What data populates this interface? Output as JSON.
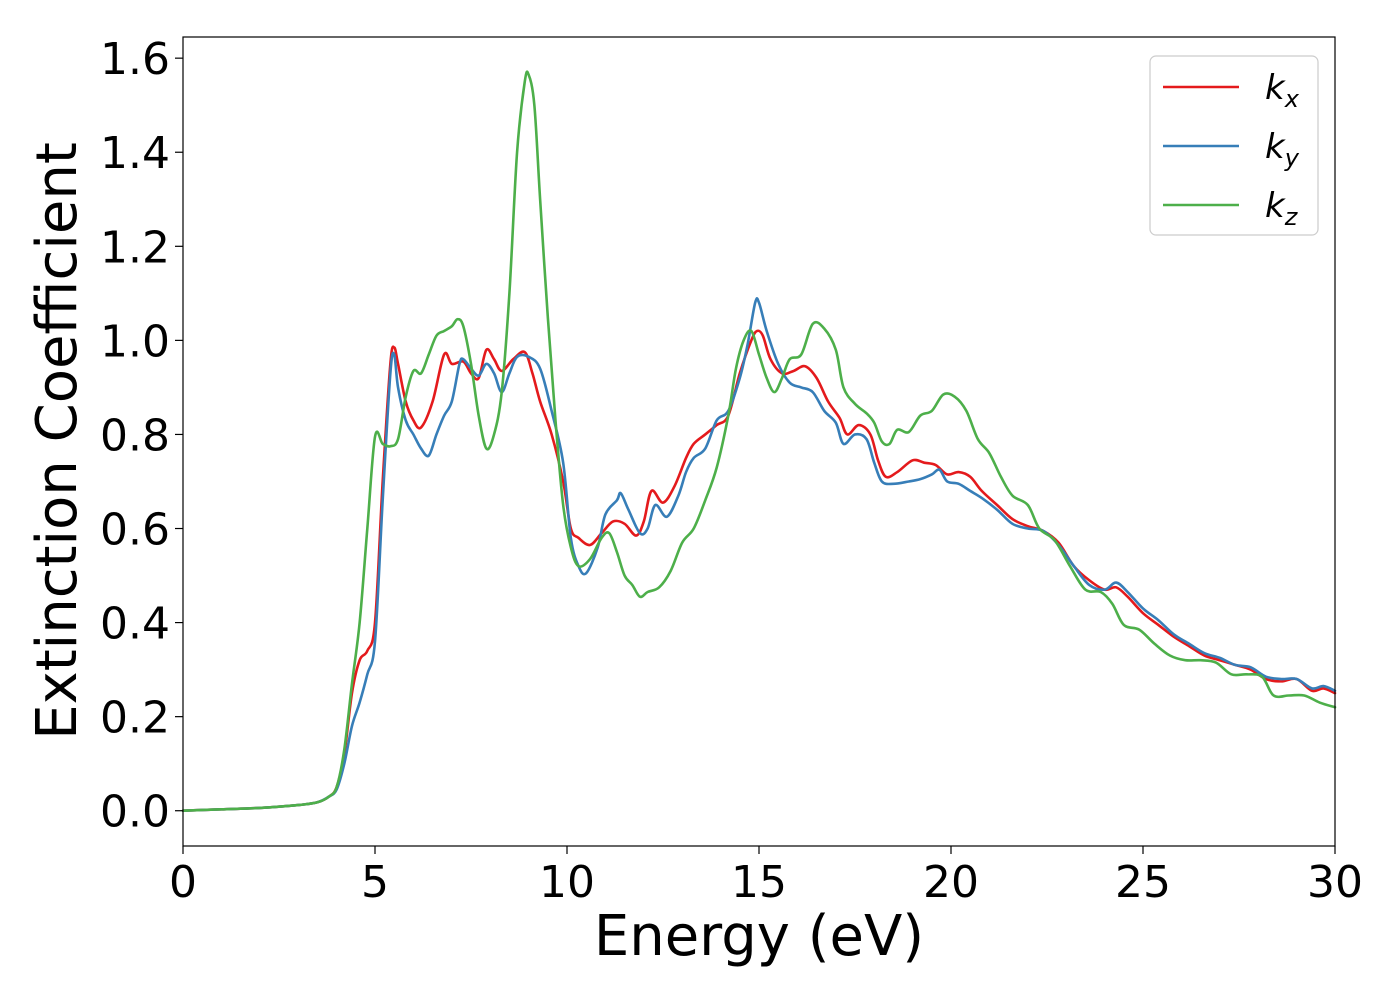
{
  "chart_data": {
    "type": "line",
    "title": "",
    "xlabel": "Energy (eV)",
    "ylabel": "Extinction Coefficient",
    "xlim": [
      0,
      30
    ],
    "ylim": [
      -0.075,
      1.645
    ],
    "xticks": [
      0,
      5,
      10,
      15,
      20,
      25,
      30
    ],
    "yticks": [
      0.0,
      0.2,
      0.4,
      0.6,
      0.8,
      1.0,
      1.2,
      1.4,
      1.6
    ],
    "xtick_labels": [
      "0",
      "5",
      "10",
      "15",
      "20",
      "25",
      "30"
    ],
    "ytick_labels": [
      "0.0",
      "0.2",
      "0.4",
      "0.6",
      "0.8",
      "1.0",
      "1.2",
      "1.4",
      "1.6"
    ],
    "grid": false,
    "legend": "top-right",
    "series": [
      {
        "name": "k_x",
        "label_base": "k",
        "label_sub": "x",
        "color": "#e41a1c",
        "points": [
          [
            0,
            0
          ],
          [
            1,
            0.003
          ],
          [
            2,
            0.006
          ],
          [
            3,
            0.012
          ],
          [
            3.5,
            0.018
          ],
          [
            3.8,
            0.03
          ],
          [
            4.0,
            0.05
          ],
          [
            4.2,
            0.12
          ],
          [
            4.4,
            0.25
          ],
          [
            4.6,
            0.32
          ],
          [
            4.8,
            0.34
          ],
          [
            5.0,
            0.4
          ],
          [
            5.2,
            0.7
          ],
          [
            5.4,
            0.95
          ],
          [
            5.5,
            0.985
          ],
          [
            5.6,
            0.95
          ],
          [
            5.8,
            0.87
          ],
          [
            6.0,
            0.83
          ],
          [
            6.2,
            0.815
          ],
          [
            6.5,
            0.87
          ],
          [
            6.8,
            0.97
          ],
          [
            7.0,
            0.95
          ],
          [
            7.3,
            0.955
          ],
          [
            7.5,
            0.93
          ],
          [
            7.7,
            0.92
          ],
          [
            7.9,
            0.98
          ],
          [
            8.1,
            0.96
          ],
          [
            8.3,
            0.935
          ],
          [
            8.6,
            0.96
          ],
          [
            8.9,
            0.975
          ],
          [
            9.1,
            0.93
          ],
          [
            9.3,
            0.87
          ],
          [
            9.6,
            0.8
          ],
          [
            9.9,
            0.7
          ],
          [
            10.1,
            0.6
          ],
          [
            10.3,
            0.58
          ],
          [
            10.6,
            0.565
          ],
          [
            10.9,
            0.59
          ],
          [
            11.2,
            0.615
          ],
          [
            11.5,
            0.61
          ],
          [
            11.8,
            0.585
          ],
          [
            12.0,
            0.615
          ],
          [
            12.2,
            0.68
          ],
          [
            12.5,
            0.655
          ],
          [
            12.8,
            0.69
          ],
          [
            13.1,
            0.75
          ],
          [
            13.3,
            0.78
          ],
          [
            13.6,
            0.8
          ],
          [
            13.9,
            0.82
          ],
          [
            14.2,
            0.84
          ],
          [
            14.5,
            0.93
          ],
          [
            14.8,
            1.0
          ],
          [
            14.95,
            1.02
          ],
          [
            15.1,
            1.01
          ],
          [
            15.3,
            0.96
          ],
          [
            15.6,
            0.93
          ],
          [
            15.9,
            0.935
          ],
          [
            16.2,
            0.945
          ],
          [
            16.5,
            0.92
          ],
          [
            16.8,
            0.87
          ],
          [
            17.1,
            0.835
          ],
          [
            17.3,
            0.8
          ],
          [
            17.6,
            0.82
          ],
          [
            17.9,
            0.8
          ],
          [
            18.1,
            0.745
          ],
          [
            18.3,
            0.71
          ],
          [
            18.6,
            0.72
          ],
          [
            19.0,
            0.745
          ],
          [
            19.3,
            0.74
          ],
          [
            19.6,
            0.735
          ],
          [
            19.9,
            0.715
          ],
          [
            20.2,
            0.72
          ],
          [
            20.5,
            0.71
          ],
          [
            20.8,
            0.68
          ],
          [
            21.2,
            0.65
          ],
          [
            21.6,
            0.62
          ],
          [
            22.0,
            0.605
          ],
          [
            22.4,
            0.595
          ],
          [
            22.8,
            0.57
          ],
          [
            23.2,
            0.52
          ],
          [
            23.6,
            0.49
          ],
          [
            24.0,
            0.47
          ],
          [
            24.3,
            0.475
          ],
          [
            24.6,
            0.455
          ],
          [
            25.0,
            0.42
          ],
          [
            25.4,
            0.395
          ],
          [
            25.8,
            0.37
          ],
          [
            26.2,
            0.35
          ],
          [
            26.6,
            0.33
          ],
          [
            27.0,
            0.32
          ],
          [
            27.4,
            0.31
          ],
          [
            27.8,
            0.3
          ],
          [
            28.2,
            0.28
          ],
          [
            28.6,
            0.275
          ],
          [
            29.0,
            0.28
          ],
          [
            29.4,
            0.255
          ],
          [
            29.7,
            0.26
          ],
          [
            30,
            0.25
          ]
        ]
      },
      {
        "name": "k_y",
        "label_base": "k",
        "label_sub": "y",
        "color": "#377eb8",
        "points": [
          [
            0,
            0
          ],
          [
            1,
            0.003
          ],
          [
            2,
            0.006
          ],
          [
            3,
            0.012
          ],
          [
            3.5,
            0.018
          ],
          [
            3.8,
            0.03
          ],
          [
            4.0,
            0.045
          ],
          [
            4.2,
            0.1
          ],
          [
            4.4,
            0.18
          ],
          [
            4.6,
            0.23
          ],
          [
            4.8,
            0.29
          ],
          [
            5.0,
            0.36
          ],
          [
            5.2,
            0.66
          ],
          [
            5.4,
            0.93
          ],
          [
            5.5,
            0.97
          ],
          [
            5.6,
            0.9
          ],
          [
            5.8,
            0.83
          ],
          [
            6.0,
            0.8
          ],
          [
            6.2,
            0.77
          ],
          [
            6.4,
            0.755
          ],
          [
            6.6,
            0.8
          ],
          [
            6.8,
            0.84
          ],
          [
            7.0,
            0.87
          ],
          [
            7.2,
            0.95
          ],
          [
            7.3,
            0.96
          ],
          [
            7.5,
            0.94
          ],
          [
            7.7,
            0.925
          ],
          [
            7.9,
            0.95
          ],
          [
            8.1,
            0.93
          ],
          [
            8.3,
            0.89
          ],
          [
            8.5,
            0.93
          ],
          [
            8.7,
            0.965
          ],
          [
            9.0,
            0.965
          ],
          [
            9.3,
            0.94
          ],
          [
            9.6,
            0.85
          ],
          [
            9.9,
            0.74
          ],
          [
            10.1,
            0.58
          ],
          [
            10.3,
            0.52
          ],
          [
            10.5,
            0.505
          ],
          [
            10.8,
            0.56
          ],
          [
            11.0,
            0.63
          ],
          [
            11.3,
            0.66
          ],
          [
            11.4,
            0.675
          ],
          [
            11.6,
            0.64
          ],
          [
            11.9,
            0.59
          ],
          [
            12.1,
            0.6
          ],
          [
            12.3,
            0.65
          ],
          [
            12.6,
            0.625
          ],
          [
            12.9,
            0.67
          ],
          [
            13.1,
            0.72
          ],
          [
            13.3,
            0.75
          ],
          [
            13.6,
            0.77
          ],
          [
            13.9,
            0.83
          ],
          [
            14.2,
            0.85
          ],
          [
            14.5,
            0.92
          ],
          [
            14.7,
            0.99
          ],
          [
            14.9,
            1.08
          ],
          [
            15.0,
            1.08
          ],
          [
            15.2,
            1.02
          ],
          [
            15.5,
            0.95
          ],
          [
            15.8,
            0.91
          ],
          [
            16.1,
            0.9
          ],
          [
            16.4,
            0.89
          ],
          [
            16.7,
            0.85
          ],
          [
            17.0,
            0.825
          ],
          [
            17.2,
            0.78
          ],
          [
            17.5,
            0.8
          ],
          [
            17.8,
            0.79
          ],
          [
            18.0,
            0.74
          ],
          [
            18.2,
            0.7
          ],
          [
            18.5,
            0.695
          ],
          [
            18.9,
            0.7
          ],
          [
            19.2,
            0.705
          ],
          [
            19.5,
            0.715
          ],
          [
            19.7,
            0.725
          ],
          [
            19.9,
            0.7
          ],
          [
            20.2,
            0.695
          ],
          [
            20.5,
            0.68
          ],
          [
            20.8,
            0.665
          ],
          [
            21.2,
            0.64
          ],
          [
            21.6,
            0.61
          ],
          [
            22.0,
            0.6
          ],
          [
            22.4,
            0.595
          ],
          [
            22.8,
            0.565
          ],
          [
            23.2,
            0.52
          ],
          [
            23.6,
            0.48
          ],
          [
            24.0,
            0.47
          ],
          [
            24.3,
            0.485
          ],
          [
            24.6,
            0.465
          ],
          [
            25.0,
            0.43
          ],
          [
            25.4,
            0.405
          ],
          [
            25.8,
            0.375
          ],
          [
            26.2,
            0.355
          ],
          [
            26.6,
            0.335
          ],
          [
            27.0,
            0.325
          ],
          [
            27.4,
            0.31
          ],
          [
            27.8,
            0.305
          ],
          [
            28.2,
            0.285
          ],
          [
            28.6,
            0.28
          ],
          [
            29.0,
            0.28
          ],
          [
            29.4,
            0.26
          ],
          [
            29.7,
            0.265
          ],
          [
            30,
            0.255
          ]
        ]
      },
      {
        "name": "k_z",
        "label_base": "k",
        "label_sub": "z",
        "color": "#4daf4a",
        "points": [
          [
            0,
            0
          ],
          [
            1,
            0.003
          ],
          [
            2,
            0.006
          ],
          [
            3,
            0.012
          ],
          [
            3.5,
            0.018
          ],
          [
            3.8,
            0.03
          ],
          [
            4.0,
            0.05
          ],
          [
            4.2,
            0.13
          ],
          [
            4.4,
            0.27
          ],
          [
            4.6,
            0.4
          ],
          [
            4.8,
            0.6
          ],
          [
            5.0,
            0.795
          ],
          [
            5.2,
            0.78
          ],
          [
            5.4,
            0.775
          ],
          [
            5.6,
            0.79
          ],
          [
            5.8,
            0.88
          ],
          [
            6.0,
            0.935
          ],
          [
            6.2,
            0.93
          ],
          [
            6.4,
            0.97
          ],
          [
            6.6,
            1.01
          ],
          [
            6.8,
            1.02
          ],
          [
            7.0,
            1.03
          ],
          [
            7.15,
            1.045
          ],
          [
            7.3,
            1.03
          ],
          [
            7.5,
            0.95
          ],
          [
            7.7,
            0.84
          ],
          [
            7.9,
            0.77
          ],
          [
            8.1,
            0.8
          ],
          [
            8.3,
            0.89
          ],
          [
            8.5,
            1.1
          ],
          [
            8.7,
            1.4
          ],
          [
            8.9,
            1.55
          ],
          [
            9.0,
            1.565
          ],
          [
            9.15,
            1.5
          ],
          [
            9.3,
            1.3
          ],
          [
            9.5,
            1.05
          ],
          [
            9.7,
            0.83
          ],
          [
            9.9,
            0.65
          ],
          [
            10.1,
            0.56
          ],
          [
            10.3,
            0.52
          ],
          [
            10.6,
            0.535
          ],
          [
            10.9,
            0.58
          ],
          [
            11.1,
            0.59
          ],
          [
            11.3,
            0.55
          ],
          [
            11.5,
            0.5
          ],
          [
            11.7,
            0.48
          ],
          [
            11.9,
            0.455
          ],
          [
            12.1,
            0.465
          ],
          [
            12.4,
            0.475
          ],
          [
            12.7,
            0.51
          ],
          [
            13.0,
            0.57
          ],
          [
            13.3,
            0.6
          ],
          [
            13.6,
            0.66
          ],
          [
            13.9,
            0.73
          ],
          [
            14.2,
            0.84
          ],
          [
            14.4,
            0.94
          ],
          [
            14.6,
            1.0
          ],
          [
            14.8,
            1.02
          ],
          [
            15.0,
            0.97
          ],
          [
            15.2,
            0.92
          ],
          [
            15.4,
            0.89
          ],
          [
            15.6,
            0.92
          ],
          [
            15.8,
            0.96
          ],
          [
            16.1,
            0.97
          ],
          [
            16.4,
            1.035
          ],
          [
            16.7,
            1.025
          ],
          [
            17.0,
            0.98
          ],
          [
            17.2,
            0.9
          ],
          [
            17.5,
            0.865
          ],
          [
            17.8,
            0.845
          ],
          [
            18.0,
            0.825
          ],
          [
            18.2,
            0.785
          ],
          [
            18.4,
            0.78
          ],
          [
            18.6,
            0.81
          ],
          [
            18.9,
            0.805
          ],
          [
            19.2,
            0.84
          ],
          [
            19.5,
            0.85
          ],
          [
            19.8,
            0.885
          ],
          [
            20.1,
            0.88
          ],
          [
            20.4,
            0.85
          ],
          [
            20.7,
            0.79
          ],
          [
            21.0,
            0.76
          ],
          [
            21.3,
            0.71
          ],
          [
            21.6,
            0.67
          ],
          [
            22.0,
            0.65
          ],
          [
            22.3,
            0.6
          ],
          [
            22.7,
            0.575
          ],
          [
            23.1,
            0.52
          ],
          [
            23.5,
            0.47
          ],
          [
            23.9,
            0.465
          ],
          [
            24.2,
            0.44
          ],
          [
            24.5,
            0.395
          ],
          [
            24.9,
            0.385
          ],
          [
            25.3,
            0.355
          ],
          [
            25.7,
            0.33
          ],
          [
            26.1,
            0.32
          ],
          [
            26.5,
            0.32
          ],
          [
            26.9,
            0.315
          ],
          [
            27.3,
            0.29
          ],
          [
            27.7,
            0.29
          ],
          [
            28.1,
            0.285
          ],
          [
            28.4,
            0.245
          ],
          [
            28.8,
            0.245
          ],
          [
            29.2,
            0.245
          ],
          [
            29.6,
            0.23
          ],
          [
            30,
            0.22
          ]
        ]
      }
    ]
  }
}
